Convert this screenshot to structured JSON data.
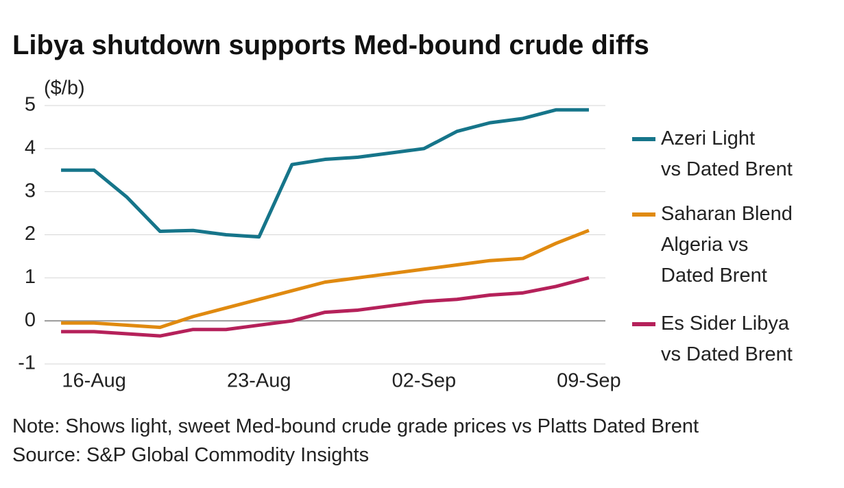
{
  "chart_data": {
    "type": "line",
    "title": "Libya shutdown supports Med-bound crude diffs",
    "y_axis_label": "($/b)",
    "categories": [
      null,
      "16-Aug",
      null,
      null,
      null,
      null,
      "23-Aug",
      null,
      null,
      null,
      null,
      "02-Sep",
      null,
      null,
      null,
      null,
      "09-Sep"
    ],
    "series": [
      {
        "name": "Azeri Light\nvs Dated Brent",
        "color": "#16758a",
        "values": [
          3.5,
          3.5,
          2.87,
          2.08,
          2.1,
          2.0,
          1.95,
          3.63,
          3.75,
          3.8,
          3.9,
          4.0,
          4.4,
          4.6,
          4.7,
          4.9,
          4.9
        ]
      },
      {
        "name": "Saharan Blend\nAlgeria vs\nDated Brent",
        "color": "#e08a10",
        "values": [
          -0.05,
          -0.05,
          -0.1,
          -0.15,
          0.1,
          0.3,
          0.5,
          0.7,
          0.9,
          1.0,
          1.1,
          1.2,
          1.3,
          1.4,
          1.45,
          1.8,
          2.1
        ]
      },
      {
        "name": "Es Sider Libya\nvs Dated Brent",
        "color": "#b5215a",
        "values": [
          -0.25,
          -0.25,
          -0.3,
          -0.35,
          -0.2,
          -0.2,
          -0.1,
          0.0,
          0.2,
          0.25,
          0.35,
          0.45,
          0.5,
          0.6,
          0.65,
          0.8,
          1.0
        ]
      }
    ],
    "ylim": [
      -1,
      5
    ],
    "yticks": [
      -1,
      0,
      1,
      2,
      3,
      4,
      5
    ],
    "grid": true,
    "legend": "right",
    "note": "Note: Shows light, sweet Med-bound crude grade prices vs Platts Dated Brent",
    "source": "Source: S&P Global Commodity Insights"
  }
}
